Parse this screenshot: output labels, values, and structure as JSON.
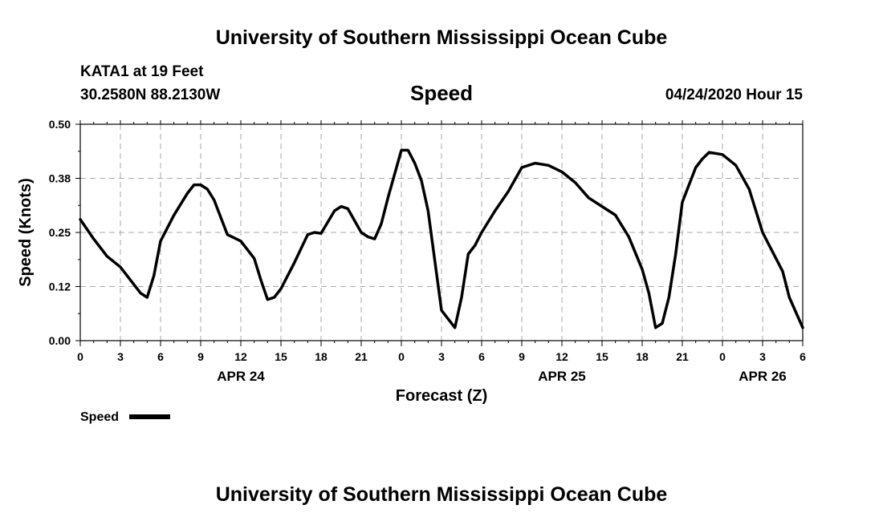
{
  "header": {
    "title": "University of Southern Mississippi Ocean Cube",
    "station": "KATA1 at 19 Feet",
    "coords": "30.2580N 88.2130W",
    "variable": "Speed",
    "timestamp": "04/24/2020 Hour 15"
  },
  "footer": {
    "title": "University of Southern Mississippi Ocean Cube"
  },
  "legend": {
    "label": "Speed"
  },
  "chart_data": {
    "type": "line",
    "title": "Speed",
    "xlabel": "Forecast (Z)",
    "ylabel": "Speed (Knots)",
    "ylim": [
      0,
      0.5
    ],
    "xlim": [
      0,
      54
    ],
    "grid": true,
    "legend_position": "bottom-left",
    "y_ticks": [
      "0.00",
      "0.12",
      "0.25",
      "0.38",
      "0.50"
    ],
    "x_ticks": [
      "0",
      "3",
      "6",
      "9",
      "12",
      "15",
      "18",
      "21",
      "0",
      "3",
      "6",
      "9",
      "12",
      "15",
      "18",
      "21",
      "0",
      "3",
      "6"
    ],
    "date_labels": [
      {
        "text": "APR 24",
        "hour": 12
      },
      {
        "text": "APR 25",
        "hour": 36
      },
      {
        "text": "APR 26",
        "hour": 51
      }
    ],
    "series": [
      {
        "name": "Speed",
        "color": "#000000",
        "x": [
          0,
          1,
          2,
          3,
          4,
          4.5,
          5,
          5.5,
          6,
          7,
          8,
          8.5,
          9,
          9.5,
          10,
          11,
          12,
          13,
          13.5,
          14,
          14.5,
          15,
          16,
          17,
          17.5,
          18,
          19,
          19.5,
          20,
          21,
          21.5,
          22,
          22.5,
          23,
          24,
          24.5,
          25,
          25.5,
          26,
          27,
          28,
          28.5,
          29,
          29.5,
          30,
          31,
          32,
          33,
          34,
          35,
          36,
          37,
          38,
          39,
          40,
          41,
          42,
          42.5,
          43,
          43.5,
          44,
          44.5,
          45,
          46,
          46.5,
          47,
          48,
          49,
          50,
          51,
          51.5,
          52,
          52.5,
          53,
          54
        ],
        "y": [
          0.28,
          0.235,
          0.195,
          0.17,
          0.13,
          0.11,
          0.1,
          0.15,
          0.23,
          0.29,
          0.34,
          0.36,
          0.36,
          0.35,
          0.325,
          0.245,
          0.23,
          0.19,
          0.14,
          0.095,
          0.1,
          0.12,
          0.18,
          0.245,
          0.25,
          0.248,
          0.3,
          0.31,
          0.305,
          0.25,
          0.24,
          0.235,
          0.27,
          0.33,
          0.44,
          0.44,
          0.41,
          0.37,
          0.3,
          0.07,
          0.03,
          0.1,
          0.2,
          0.22,
          0.25,
          0.3,
          0.345,
          0.4,
          0.41,
          0.405,
          0.39,
          0.365,
          0.33,
          0.31,
          0.29,
          0.24,
          0.165,
          0.11,
          0.03,
          0.04,
          0.1,
          0.2,
          0.32,
          0.4,
          0.42,
          0.435,
          0.43,
          0.405,
          0.35,
          0.25,
          0.22,
          0.19,
          0.16,
          0.1,
          0.03
        ]
      }
    ]
  }
}
